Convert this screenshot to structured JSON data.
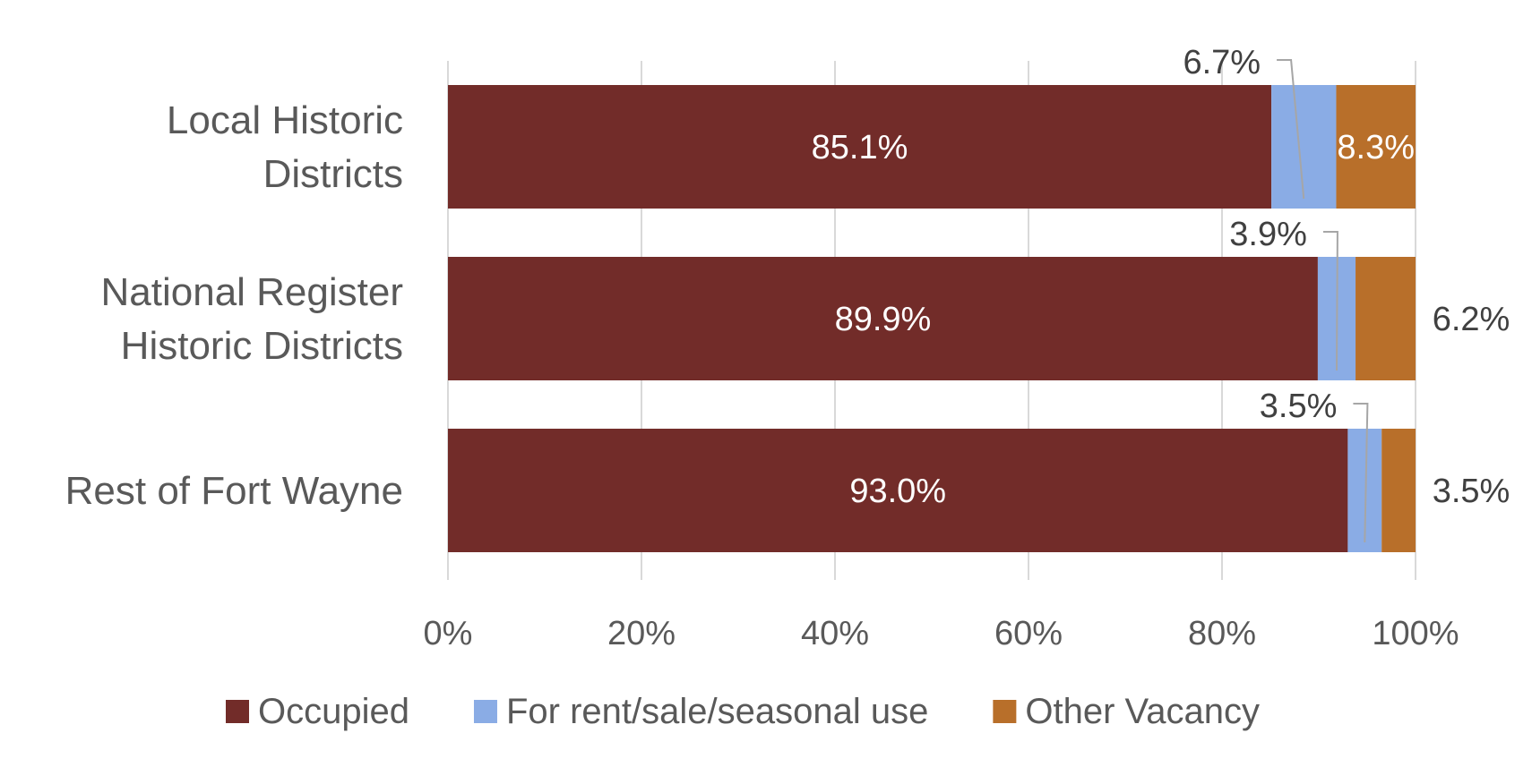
{
  "chart_data": {
    "type": "bar",
    "orientation": "horizontal",
    "stacked": true,
    "categories": [
      "Local Historic Districts",
      "National Register Historic Districts",
      "Rest of Fort Wayne"
    ],
    "category_lines": [
      [
        "Local Historic",
        "Districts"
      ],
      [
        "National Register",
        "Historic Districts"
      ],
      [
        "Rest of Fort Wayne"
      ]
    ],
    "series": [
      {
        "name": "Occupied",
        "color": "#722C29",
        "values": [
          85.1,
          89.9,
          93.0
        ],
        "labels": [
          "85.1%",
          "89.9%",
          "93.0%"
        ]
      },
      {
        "name": "For rent/sale/seasonal use",
        "color": "#8AACE5",
        "values": [
          6.7,
          3.9,
          3.5
        ],
        "labels": [
          "6.7%",
          "3.9%",
          "3.5%"
        ]
      },
      {
        "name": "Other Vacancy",
        "color": "#B86F2A",
        "values": [
          8.3,
          6.2,
          3.5
        ],
        "labels": [
          "8.3%",
          "6.2%",
          "3.5%"
        ]
      }
    ],
    "xlim": [
      0,
      100
    ],
    "x_ticks": [
      "0%",
      "20%",
      "40%",
      "60%",
      "80%",
      "100%"
    ],
    "grid": true,
    "legend_position": "bottom"
  }
}
